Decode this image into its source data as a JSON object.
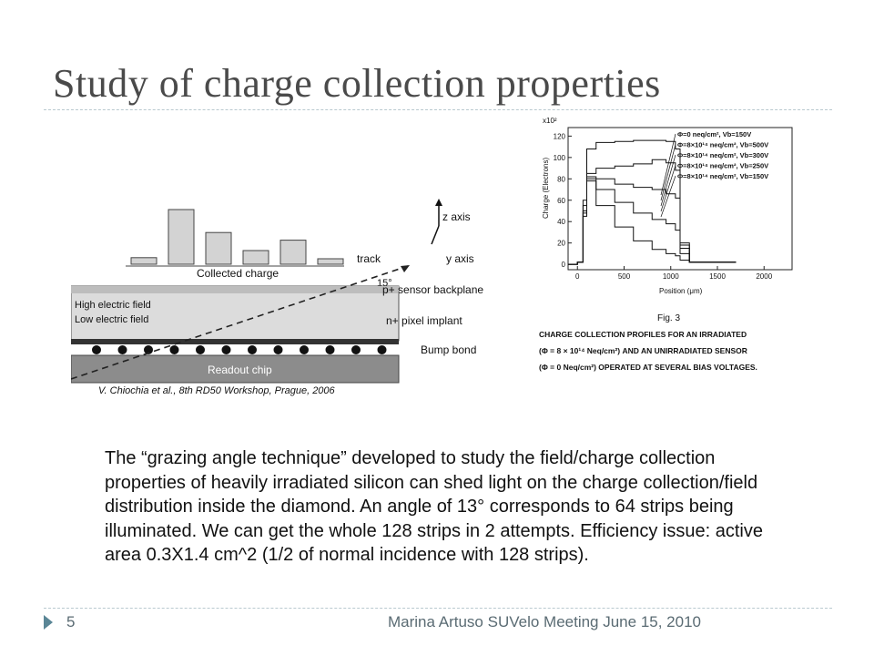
{
  "slide": {
    "title": "Study of charge collection properties",
    "body": "The “grazing angle technique” developed to study the field/charge collection properties of heavily irradiated silicon can shed light on the charge collection/field distribution inside the diamond.   An angle of 13° corresponds to 64 strips being illuminated. We can get the whole 128 strips in 2 attempts.  Efficiency issue: active area 0.3X1.4 cm^2 (1/2 of normal incidence with 128 strips).",
    "footer": {
      "page_number": "5",
      "text": "Marina Artuso SUVelo Meeting  June 15, 2010"
    }
  },
  "figure_left": {
    "collected_charge_label": "Collected charge",
    "track_label": "track",
    "angle_label": "15°",
    "z_axis_label": "z axis",
    "y_axis_label": "y axis",
    "backplane_label": "p+ sensor backplane",
    "high_field_label": "High electric field",
    "low_field_label": "Low electric field",
    "pixel_implant_label": "n+ pixel implant",
    "bump_bond_label": "Bump bond",
    "readout_chip_label": "Readout chip",
    "citation": "V. Chiochia et al., 8th RD50 Workshop, Prague, 2006",
    "collected_charge_bars": [
      0.12,
      1.0,
      0.58,
      0.25,
      0.44,
      0.1
    ]
  },
  "figure_right": {
    "scale_label": "x10²",
    "ylabel": "Charge (Electrons)",
    "xlabel": "Position (μm)",
    "x_ticks": [
      "0",
      "500",
      "1000",
      "1500",
      "2000"
    ],
    "y_ticks": [
      "0",
      "20",
      "40",
      "60",
      "80",
      "100",
      "120"
    ],
    "legend": [
      "Φ=0 neq/cm², Vb=150V",
      "Φ=8×10¹⁴ neq/cm², Vb=500V",
      "Φ=8×10¹⁴ neq/cm², Vb=300V",
      "Φ=8×10¹⁴ neq/cm², Vb=250V",
      "Φ=8×10¹⁴ neq/cm², Vb=150V"
    ],
    "fig_label": "Fig. 3",
    "caption_line1": "CHARGE COLLECTION PROFILES FOR AN IRRADIATED",
    "caption_line2": "(Φ = 8 × 10¹⁴ Neq/cm²) AND AN UNIRRADIATED SENSOR",
    "caption_line3": "(Φ = 0 Neq/cm²) OPERATED AT SEVERAL BIAS VOLTAGES.",
    "xlim": [
      -100,
      2300
    ],
    "ylim": [
      -5,
      128
    ],
    "curves": [
      {
        "name": "Φ=0, 150V",
        "x": [
          -100,
          0,
          60,
          100,
          200,
          400,
          600,
          800,
          950,
          1050,
          1100,
          1200,
          1700
        ],
        "y": [
          0,
          2,
          60,
          108,
          114,
          115,
          116,
          116,
          115,
          108,
          20,
          2,
          2
        ]
      },
      {
        "name": "Φ=8e14, 500V",
        "x": [
          -100,
          0,
          60,
          100,
          200,
          400,
          600,
          800,
          950,
          1050,
          1100,
          1200,
          1700
        ],
        "y": [
          0,
          2,
          55,
          85,
          90,
          92,
          94,
          98,
          95,
          88,
          18,
          2,
          2
        ]
      },
      {
        "name": "Φ=8e14, 300V",
        "x": [
          -100,
          0,
          60,
          100,
          200,
          400,
          600,
          800,
          950,
          1050,
          1100,
          1200,
          1700
        ],
        "y": [
          0,
          2,
          50,
          82,
          80,
          75,
          72,
          70,
          66,
          62,
          15,
          2,
          2
        ]
      },
      {
        "name": "Φ=8e14, 250V",
        "x": [
          -100,
          0,
          60,
          100,
          200,
          400,
          600,
          800,
          950,
          1050,
          1100,
          1200,
          1700
        ],
        "y": [
          0,
          2,
          48,
          80,
          70,
          58,
          48,
          42,
          38,
          32,
          10,
          2,
          2
        ]
      },
      {
        "name": "Φ=8e14, 150V",
        "x": [
          -100,
          0,
          60,
          100,
          200,
          400,
          600,
          800,
          950,
          1050,
          1100,
          1200,
          1700
        ],
        "y": [
          0,
          2,
          45,
          78,
          55,
          35,
          22,
          14,
          10,
          8,
          4,
          2,
          2
        ]
      }
    ]
  }
}
